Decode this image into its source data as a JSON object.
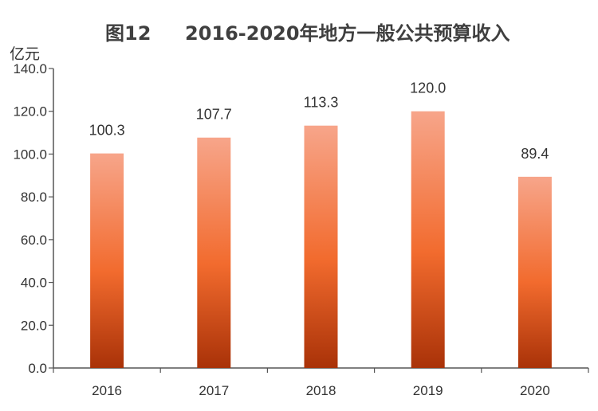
{
  "header": {
    "figure_no": "图12",
    "title": "2016-2020年地方一般公共预算收入"
  },
  "chart_data": {
    "type": "bar",
    "title": "2016-2020年地方一般公共预算收入",
    "unit_label": "亿元",
    "categories": [
      "2016",
      "2017",
      "2018",
      "2019",
      "2020"
    ],
    "values": [
      100.3,
      107.7,
      113.3,
      120.0,
      89.4
    ],
    "value_labels": [
      "100.3",
      "107.7",
      "113.3",
      "120.0",
      "89.4"
    ],
    "yticks": [
      "0.0",
      "20.0",
      "40.0",
      "60.0",
      "80.0",
      "100.0",
      "120.0",
      "140.0"
    ],
    "ylim": [
      0,
      140
    ],
    "grid": false,
    "legend": "none",
    "colors": {
      "bar_top": "#f7a58a",
      "bar_mid": "#f26b2e",
      "bar_bottom": "#a93208"
    }
  }
}
